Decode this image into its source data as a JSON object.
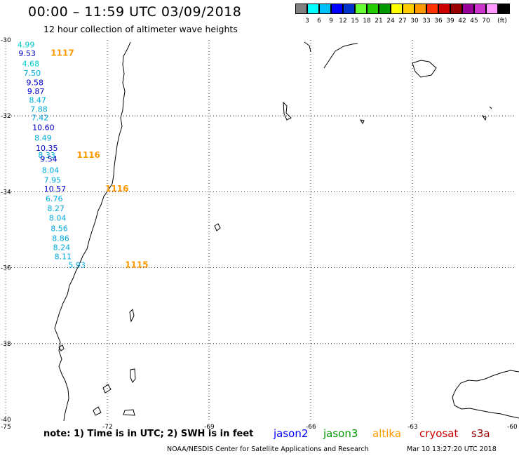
{
  "header": {
    "title": "00:00 – 11:59 UTC 03/09/2018",
    "subtitle": "12 hour collection of altimeter wave heights"
  },
  "legend": {
    "unit_label": "(ft)",
    "colors": [
      "#808080",
      "#00ffff",
      "#00bfff",
      "#0000ff",
      "#0033cc",
      "#66ff33",
      "#22cc00",
      "#009900",
      "#ffff00",
      "#ffcc00",
      "#ff9900",
      "#ff3300",
      "#cc0000",
      "#990000",
      "#990099",
      "#cc33cc",
      "#ff99ff",
      "#000000"
    ],
    "labels": [
      "3",
      "6",
      "9",
      "12",
      "15",
      "18",
      "21",
      "24",
      "27",
      "30",
      "33",
      "36",
      "39",
      "42",
      "45",
      "70"
    ]
  },
  "axes": {
    "lat_labels": [
      "-30",
      "-32",
      "-34",
      "-36",
      "-38",
      "-40"
    ],
    "lon_labels": [
      "-75",
      "-72",
      "-69",
      "-66",
      "-63",
      "-60"
    ]
  },
  "passes": [
    {
      "label": "1117",
      "lat": -30.34,
      "lon": -73.67
    },
    {
      "label": "1116",
      "lat": -33.03,
      "lon": -72.9
    },
    {
      "label": "1116",
      "lat": -33.92,
      "lon": -72.06
    },
    {
      "label": "1115",
      "lat": -35.92,
      "lon": -71.48
    }
  ],
  "observations": [
    {
      "value": "4.99",
      "lat": -30.12,
      "lon": -74.65,
      "color": "#00cccc"
    },
    {
      "value": "9.53",
      "lat": -30.35,
      "lon": -74.62,
      "color": "#0000cc"
    },
    {
      "value": "4.68",
      "lat": -30.62,
      "lon": -74.51,
      "color": "#00cccc"
    },
    {
      "value": "7.50",
      "lat": -30.87,
      "lon": -74.47,
      "color": "#00aadd"
    },
    {
      "value": "9.58",
      "lat": -31.12,
      "lon": -74.39,
      "color": "#0000cc"
    },
    {
      "value": "9.87",
      "lat": -31.35,
      "lon": -74.36,
      "color": "#0000cc"
    },
    {
      "value": "8.47",
      "lat": -31.58,
      "lon": -74.31,
      "color": "#00aadd"
    },
    {
      "value": "7.88",
      "lat": -31.82,
      "lon": -74.27,
      "color": "#00aadd"
    },
    {
      "value": "7.42",
      "lat": -32.04,
      "lon": -74.24,
      "color": "#00aadd"
    },
    {
      "value": "10.60",
      "lat": -32.3,
      "lon": -74.21,
      "color": "#0000cc"
    },
    {
      "value": "8.49",
      "lat": -32.58,
      "lon": -74.15,
      "color": "#00aadd"
    },
    {
      "value": "10.35",
      "lat": -32.85,
      "lon": -74.11,
      "color": "#0000cc"
    },
    {
      "value": "8.33",
      "lat": -33.03,
      "lon": -74.04,
      "color": "#00aadd"
    },
    {
      "value": "9.54",
      "lat": -33.13,
      "lon": -73.98,
      "color": "#0000cc"
    },
    {
      "value": "8.04",
      "lat": -33.43,
      "lon": -73.93,
      "color": "#00aadd"
    },
    {
      "value": "7.95",
      "lat": -33.69,
      "lon": -73.87,
      "color": "#00aadd"
    },
    {
      "value": "10.57",
      "lat": -33.92,
      "lon": -73.87,
      "color": "#0000cc"
    },
    {
      "value": "6.76",
      "lat": -34.18,
      "lon": -73.82,
      "color": "#00aadd"
    },
    {
      "value": "8.27",
      "lat": -34.44,
      "lon": -73.77,
      "color": "#00aadd"
    },
    {
      "value": "8.04",
      "lat": -34.69,
      "lon": -73.72,
      "color": "#00aadd"
    },
    {
      "value": "8.56",
      "lat": -34.96,
      "lon": -73.67,
      "color": "#00aadd"
    },
    {
      "value": "8.86",
      "lat": -35.22,
      "lon": -73.63,
      "color": "#00aadd"
    },
    {
      "value": "8.24",
      "lat": -35.46,
      "lon": -73.6,
      "color": "#00aadd"
    },
    {
      "value": "8.11",
      "lat": -35.7,
      "lon": -73.56,
      "color": "#00aadd"
    },
    {
      "value": "5.93",
      "lat": -35.92,
      "lon": -73.15,
      "color": "#00aadd"
    }
  ],
  "footer": {
    "note": "note:  1) Time is in UTC;  2) SWH is in feet",
    "satellites": [
      {
        "name": "jason2",
        "color": "#0000ff"
      },
      {
        "name": "jason3",
        "color": "#009900"
      },
      {
        "name": "altika",
        "color": "#ff9900"
      },
      {
        "name": "cryosat",
        "color": "#cc0000"
      },
      {
        "name": "s3a",
        "color": "#990000"
      }
    ],
    "credit": "NOAA/NESDIS Center for Satellite Applications and Research",
    "timestamp": "Mar 10 13:27:20 UTC 2018"
  }
}
